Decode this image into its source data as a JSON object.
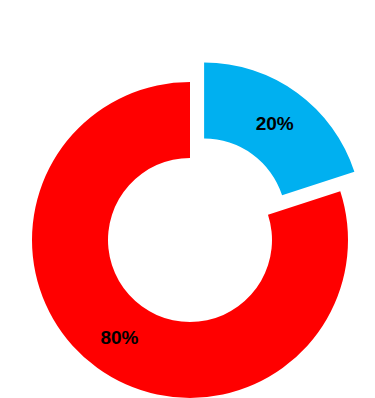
{
  "chart_data": {
    "type": "donut",
    "values": [
      20,
      80
    ],
    "value_labels": [
      "20%",
      "80%"
    ],
    "colors": [
      "#00b0f0",
      "#ff0000"
    ],
    "data_labels": true
  }
}
